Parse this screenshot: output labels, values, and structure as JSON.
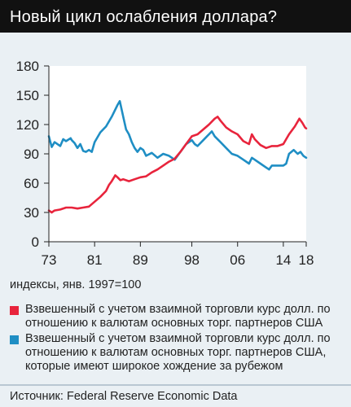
{
  "title": "Новый цикл ослабления доллара?",
  "note": "индексы, янв. 1997=100",
  "source": "Источник: Federal Reserve Economic Data",
  "chart_data": {
    "type": "line",
    "title": "Новый цикл ослабления доллара?",
    "xlabel": "",
    "ylabel": "",
    "ylim": [
      0,
      180
    ],
    "yticks": [
      0,
      30,
      60,
      90,
      120,
      150,
      180
    ],
    "xlim": [
      1973,
      2018
    ],
    "xticks": [
      1973,
      1981,
      1989,
      1998,
      2006,
      2014,
      2018
    ],
    "xtick_labels": [
      "73",
      "81",
      "89",
      "98",
      "06",
      "14",
      "18"
    ],
    "grid": false,
    "legend": "bottom",
    "series": [
      {
        "name": "Взвешенный с учетом взаимной торговли курс долл. по отношению к валютам основных торг. партнеров США",
        "color": "#e8243c",
        "x": [
          1973,
          1973.5,
          1974,
          1975,
          1976,
          1977,
          1978,
          1979,
          1980,
          1981,
          1982,
          1983,
          1983.5,
          1984,
          1984.6,
          1985,
          1985.5,
          1986,
          1987,
          1988,
          1989,
          1990,
          1991,
          1992,
          1993,
          1994,
          1995,
          1996,
          1997,
          1998,
          1999,
          2000,
          2001,
          2002,
          2002.5,
          2003,
          2004,
          2005,
          2006,
          2007,
          2008,
          2008.5,
          2009,
          2010,
          2011,
          2012,
          2013,
          2014,
          2015,
          2016,
          2016.8,
          2017.3,
          2017.8,
          2018
        ],
        "y": [
          32,
          30,
          32,
          33,
          35,
          35,
          34,
          35,
          36,
          41,
          46,
          52,
          58,
          62,
          68,
          66,
          63,
          64,
          62,
          64,
          66,
          67,
          71,
          74,
          78,
          82,
          85,
          92,
          100,
          108,
          110,
          115,
          120,
          126,
          128,
          124,
          117,
          113,
          110,
          103,
          100,
          110,
          105,
          99,
          96,
          98,
          98,
          100,
          110,
          118,
          126,
          122,
          117,
          116
        ]
      },
      {
        "name": "Взвешенный с учетом взаимной торговли курс долл. по отношению к валютам основных торг. партнеров США, которые имеют широкое хождение за рубежом",
        "color": "#1f8ec4",
        "x": [
          1973,
          1973.5,
          1974,
          1975,
          1975.5,
          1976,
          1976.8,
          1977,
          1977.5,
          1978,
          1978.5,
          1979,
          1979.5,
          1980,
          1980.5,
          1981,
          1982,
          1983,
          1984,
          1985,
          1985.4,
          1986,
          1986.5,
          1987,
          1987.5,
          1988,
          1988.5,
          1989,
          1989.5,
          1990,
          1991,
          1992,
          1993,
          1994,
          1995,
          1996,
          1997,
          1998,
          1998.5,
          1999,
          2000,
          2001,
          2001.5,
          2002,
          2003,
          2004,
          2005,
          2006,
          2007,
          2008,
          2008.5,
          2009,
          2010,
          2011,
          2011.5,
          2012,
          2013,
          2014,
          2014.5,
          2015,
          2015.8,
          2016.5,
          2017,
          2017.5,
          2018
        ],
        "y": [
          108,
          97,
          102,
          98,
          105,
          103,
          106,
          104,
          101,
          96,
          100,
          93,
          92,
          94,
          92,
          102,
          112,
          118,
          128,
          140,
          144,
          128,
          115,
          110,
          102,
          96,
          92,
          96,
          94,
          88,
          91,
          86,
          90,
          88,
          84,
          92,
          100,
          104,
          100,
          98,
          104,
          110,
          113,
          108,
          102,
          96,
          90,
          88,
          84,
          80,
          86,
          84,
          80,
          76,
          74,
          78,
          78,
          78,
          80,
          90,
          94,
          90,
          92,
          88,
          86
        ]
      }
    ]
  }
}
